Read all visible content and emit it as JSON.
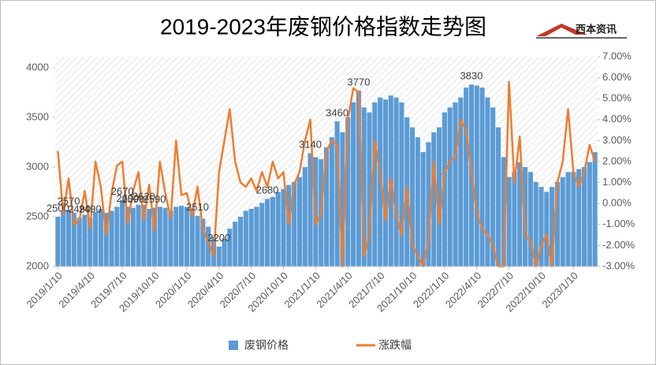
{
  "chart_data": {
    "type": "bar-line",
    "title": "2019-2023年废钢价格指数走势图",
    "logo": "西本资讯",
    "categories": [
      "2019/1/10",
      null,
      null,
      null,
      null,
      null,
      "2019/4/10",
      null,
      null,
      null,
      null,
      null,
      "2019/7/10",
      null,
      null,
      null,
      null,
      null,
      "2019/10/10",
      null,
      null,
      null,
      null,
      null,
      "2020/1/10",
      null,
      null,
      null,
      null,
      null,
      "2020/4/10",
      null,
      null,
      null,
      null,
      null,
      "2020/7/10",
      null,
      null,
      null,
      null,
      null,
      "2020/10/10",
      null,
      null,
      null,
      null,
      null,
      "2021/1/10",
      null,
      null,
      null,
      null,
      null,
      "2021/4/10",
      null,
      null,
      null,
      null,
      null,
      "2021/7/10",
      null,
      null,
      null,
      null,
      null,
      "2021/10/10",
      null,
      null,
      null,
      null,
      null,
      "2022/1/10",
      null,
      null,
      null,
      null,
      null,
      "2022/4/10",
      null,
      null,
      null,
      null,
      null,
      "2022/7/10",
      null,
      null,
      null,
      null,
      null,
      "2022/10/10",
      null,
      null,
      null,
      null,
      null,
      "2023/1/10",
      null,
      null,
      null,
      null
    ],
    "series": [
      {
        "name": "废钢价格",
        "color": "#5b9bd5",
        "values": [
          2500,
          2560,
          2570,
          2540,
          2490,
          2520,
          2490,
          2550,
          2580,
          2540,
          2560,
          2600,
          2670,
          2600,
          2590,
          2620,
          2620,
          2580,
          2590,
          2600,
          2590,
          2560,
          2600,
          2610,
          2600,
          2590,
          2510,
          2480,
          2400,
          2300,
          2200,
          2280,
          2380,
          2450,
          2500,
          2560,
          2580,
          2600,
          2640,
          2680,
          2700,
          2750,
          2780,
          2820,
          2850,
          2900,
          3000,
          3140,
          3100,
          3080,
          3200,
          3300,
          3460,
          3350,
          3500,
          3650,
          3770,
          3600,
          3550,
          3650,
          3700,
          3680,
          3720,
          3700,
          3650,
          3500,
          3400,
          3300,
          3150,
          3250,
          3350,
          3400,
          3550,
          3600,
          3650,
          3700,
          3800,
          3830,
          3820,
          3800,
          3700,
          3600,
          3400,
          3100,
          2900,
          2950,
          3050,
          3000,
          2950,
          2850,
          2800,
          2750,
          2800,
          2850,
          2900,
          2950,
          2950,
          2980,
          3000,
          3050,
          3150
        ],
        "value_labels": [
          "2500",
          null,
          "2570",
          null,
          "2490",
          null,
          "2490",
          null,
          null,
          null,
          null,
          null,
          "2670",
          "2600",
          "2590",
          null,
          "2620",
          null,
          "2590",
          null,
          null,
          null,
          null,
          null,
          null,
          null,
          "2510",
          null,
          null,
          null,
          "2200",
          null,
          null,
          null,
          null,
          null,
          null,
          null,
          null,
          "2680",
          null,
          null,
          null,
          null,
          null,
          null,
          null,
          "3140",
          null,
          null,
          null,
          null,
          "3460",
          null,
          null,
          null,
          "3770",
          null,
          null,
          null,
          null,
          null,
          null,
          null,
          null,
          null,
          null,
          null,
          null,
          null,
          null,
          null,
          null,
          null,
          null,
          null,
          null,
          "3830",
          null,
          null,
          null,
          null,
          null,
          null,
          null,
          null,
          null,
          null,
          null,
          null,
          null,
          null,
          null,
          null,
          null,
          null,
          null,
          null,
          null,
          null,
          null
        ]
      },
      {
        "name": "涨跌幅",
        "color": "#ed7d31",
        "axis": "y2",
        "values": [
          2.5,
          -0.5,
          1.2,
          -1,
          -0.8,
          0.6,
          -1.2,
          2,
          0.8,
          -1.5,
          0.5,
          1.8,
          2,
          -1,
          0.6,
          1.5,
          -0.8,
          0.9,
          -1.3,
          2,
          0.5,
          -0.7,
          3,
          0.4,
          0.5,
          -0.6,
          0.8,
          -1.2,
          -1.8,
          -2.5,
          1.5,
          3,
          4.5,
          2,
          1,
          0.8,
          1.2,
          0.6,
          1.5,
          0.8,
          2,
          1.2,
          1.5,
          -1,
          0.9,
          1.5,
          3,
          4,
          -1,
          -0.5,
          2.5,
          3,
          2.8,
          -3,
          4,
          5.5,
          5.3,
          -2.5,
          -1.5,
          3,
          1.5,
          -0.8,
          1.2,
          -0.6,
          -1.5,
          0.8,
          -2,
          -2.5,
          -3,
          -1.8,
          2,
          -1,
          1.5,
          2,
          2.2,
          4,
          3.5,
          1.5,
          -0.5,
          -1.2,
          -1.5,
          -2,
          -3,
          -3,
          5.8,
          1,
          3.2,
          -1.5,
          -1.8,
          -3,
          -2,
          -1.5,
          -3,
          1,
          2,
          4.5,
          1.5,
          0.8,
          1.5,
          2.8,
          2
        ]
      }
    ],
    "ylim": [
      2000,
      4110
    ],
    "yticks": [
      2000,
      2500,
      3000,
      3500,
      4000
    ],
    "y2lim": [
      -3,
      7
    ],
    "y2ticks": [
      {
        "value": -3,
        "label": "-3.00%"
      },
      {
        "value": -2,
        "label": "-2.00%"
      },
      {
        "value": -1,
        "label": "-1.00%"
      },
      {
        "value": 0,
        "label": "0.00%"
      },
      {
        "value": 1,
        "label": "1.00%"
      },
      {
        "value": 2,
        "label": "2.00%"
      },
      {
        "value": 3,
        "label": "3.00%"
      },
      {
        "value": 4,
        "label": "4.00%"
      },
      {
        "value": 5,
        "label": "5.00%"
      },
      {
        "value": 6,
        "label": "6.00%"
      },
      {
        "value": 7,
        "label": "7.00%"
      }
    ]
  }
}
